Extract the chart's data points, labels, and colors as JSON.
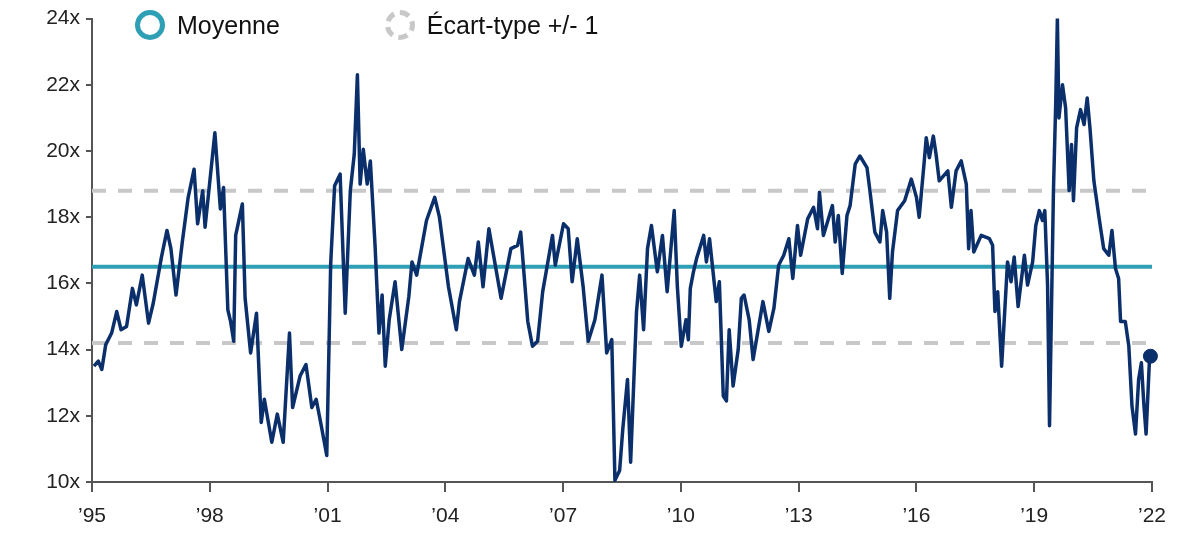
{
  "chart_data": {
    "type": "line",
    "xlim": [
      1995,
      2022
    ],
    "ylim": [
      10,
      24
    ],
    "xticks": [
      {
        "value": 1995,
        "label": "’95"
      },
      {
        "value": 1998,
        "label": "’98"
      },
      {
        "value": 2001,
        "label": "’01"
      },
      {
        "value": 2004,
        "label": "’04"
      },
      {
        "value": 2007,
        "label": "’07"
      },
      {
        "value": 2010,
        "label": "’10"
      },
      {
        "value": 2013,
        "label": "’13"
      },
      {
        "value": 2016,
        "label": "’16"
      },
      {
        "value": 2019,
        "label": "’19"
      },
      {
        "value": 2022,
        "label": "’22"
      }
    ],
    "yticks": [
      {
        "value": 10,
        "label": "10x"
      },
      {
        "value": 12,
        "label": "12x"
      },
      {
        "value": 14,
        "label": "14x"
      },
      {
        "value": 16,
        "label": "16x"
      },
      {
        "value": 18,
        "label": "18x"
      },
      {
        "value": 20,
        "label": "20x"
      },
      {
        "value": 22,
        "label": "22x"
      },
      {
        "value": 24,
        "label": "24x"
      }
    ],
    "legend": "top left",
    "ref_lines": [
      {
        "axis": "y",
        "value": 16.5,
        "label": "Moyenne",
        "color": "#2e9fb5",
        "line_style": "solid"
      },
      {
        "axis": "y",
        "value": 18.8,
        "label": "Écart-type +/- 1",
        "color": "#c8c8c8",
        "line_style": "dashed"
      },
      {
        "axis": "y",
        "value": 14.2,
        "color": "#c8c8c8",
        "line_style": "dashed"
      }
    ],
    "series": [
      {
        "type": "line",
        "color": "#0b2f6b",
        "marker": "none",
        "x": [
          1995.05,
          1995.16,
          1995.25,
          1995.35,
          1995.5,
          1995.63,
          1995.74,
          1995.88,
          1996.03,
          1996.13,
          1996.28,
          1996.44,
          1996.56,
          1996.77,
          1996.91,
          1997.01,
          1997.14,
          1997.3,
          1997.45,
          1997.6,
          1997.69,
          1997.82,
          1997.88,
          1998.13,
          1998.27,
          1998.35,
          1998.46,
          1998.53,
          1998.61,
          1998.66,
          1998.83,
          1998.9,
          1999.04,
          1999.19,
          1999.31,
          1999.39,
          1999.58,
          1999.72,
          1999.87,
          2000.03,
          2000.11,
          2000.3,
          2000.45,
          2000.6,
          2000.71,
          2000.84,
          2000.98,
          2001.08,
          2001.18,
          2001.32,
          2001.45,
          2001.58,
          2001.68,
          2001.76,
          2001.83,
          2001.91,
          2002.01,
          2002.09,
          2002.21,
          2002.31,
          2002.39,
          2002.47,
          2002.57,
          2002.72,
          2002.89,
          2003.07,
          2003.15,
          2003.27,
          2003.52,
          2003.73,
          2003.85,
          2004.08,
          2004.28,
          2004.36,
          2004.58,
          2004.74,
          2004.84,
          2004.96,
          2005.11,
          2005.42,
          2005.67,
          2005.84,
          2005.92,
          2006.1,
          2006.22,
          2006.35,
          2006.48,
          2006.73,
          2006.8,
          2007.01,
          2007.13,
          2007.23,
          2007.36,
          2007.51,
          2007.64,
          2007.81,
          2007.99,
          2008.11,
          2008.24,
          2008.32,
          2008.44,
          2008.52,
          2008.64,
          2008.72,
          2008.87,
          2008.95,
          2009.05,
          2009.15,
          2009.25,
          2009.4,
          2009.53,
          2009.65,
          2009.83,
          2009.91,
          2010.01,
          2010.13,
          2010.19,
          2010.24,
          2010.32,
          2010.4,
          2010.58,
          2010.65,
          2010.73,
          2010.9,
          2010.98,
          2011.08,
          2011.16,
          2011.23,
          2011.33,
          2011.46,
          2011.54,
          2011.61,
          2011.74,
          2011.84,
          2012.09,
          2012.24,
          2012.37,
          2012.49,
          2012.62,
          2012.75,
          2012.85,
          2012.97,
          2013.05,
          2013.23,
          2013.38,
          2013.48,
          2013.53,
          2013.63,
          2013.86,
          2013.93,
          2014.01,
          2014.11,
          2014.23,
          2014.31,
          2014.44,
          2014.56,
          2014.74,
          2014.81,
          2014.94,
          2015.07,
          2015.14,
          2015.24,
          2015.32,
          2015.39,
          2015.52,
          2015.7,
          2015.87,
          2016.0,
          2016.07,
          2016.2,
          2016.25,
          2016.33,
          2016.43,
          2016.5,
          2016.58,
          2016.8,
          2016.89,
          2017.01,
          2017.14,
          2017.27,
          2017.33,
          2017.39,
          2017.46,
          2017.65,
          2017.86,
          2017.94,
          2018.0,
          2018.07,
          2018.17,
          2018.32,
          2018.41,
          2018.49,
          2018.59,
          2018.75,
          2018.83,
          2018.96,
          2019.04,
          2019.13,
          2019.21,
          2019.27,
          2019.34,
          2019.39,
          2019.49,
          2019.55,
          2019.59,
          2019.63,
          2019.72,
          2019.8,
          2019.89,
          2019.95,
          2020.0,
          2020.08,
          2020.18,
          2020.27,
          2020.35,
          2020.42,
          2020.52,
          2020.65,
          2020.77,
          2020.9,
          2020.98,
          2021.07,
          2021.15,
          2021.2,
          2021.32,
          2021.41,
          2021.49,
          2021.58,
          2021.66,
          2021.73,
          2021.79,
          2021.85,
          2021.94
        ],
        "values": [
          13.5,
          13.65,
          13.4,
          14.15,
          14.5,
          15.15,
          14.6,
          14.7,
          15.85,
          15.35,
          16.25,
          14.8,
          15.4,
          16.8,
          17.6,
          17.05,
          15.65,
          17.25,
          18.6,
          19.45,
          17.8,
          18.8,
          17.7,
          20.55,
          18.25,
          18.9,
          15.2,
          14.85,
          14.25,
          17.45,
          18.4,
          15.55,
          13.9,
          15.1,
          11.8,
          12.5,
          11.2,
          12.05,
          11.2,
          14.5,
          12.25,
          13.2,
          13.55,
          12.25,
          12.5,
          11.7,
          10.8,
          16.6,
          18.95,
          19.3,
          15.1,
          18.8,
          19.9,
          22.3,
          19.0,
          20.05,
          19.0,
          19.7,
          17.15,
          14.5,
          15.65,
          13.5,
          14.9,
          16.05,
          14.0,
          15.6,
          16.65,
          16.25,
          17.9,
          18.6,
          18.0,
          15.9,
          14.6,
          15.45,
          16.75,
          16.25,
          17.25,
          15.9,
          17.65,
          15.55,
          17.05,
          17.15,
          17.55,
          14.85,
          14.1,
          14.25,
          15.75,
          17.45,
          16.55,
          17.8,
          17.65,
          16.05,
          17.35,
          15.9,
          14.25,
          14.9,
          16.25,
          13.9,
          14.3,
          10.05,
          10.35,
          11.6,
          13.1,
          10.6,
          15.15,
          16.25,
          14.6,
          17.05,
          17.75,
          16.35,
          17.45,
          15.75,
          18.2,
          15.9,
          14.1,
          14.9,
          14.3,
          15.85,
          16.35,
          16.75,
          17.45,
          16.65,
          17.35,
          15.45,
          16.05,
          12.6,
          12.45,
          14.6,
          12.9,
          14.0,
          15.55,
          15.65,
          14.9,
          13.7,
          15.45,
          14.55,
          15.25,
          16.55,
          16.85,
          17.35,
          16.15,
          17.75,
          16.85,
          17.95,
          18.3,
          17.65,
          18.75,
          17.45,
          18.35,
          17.25,
          18.05,
          16.3,
          18.05,
          18.35,
          19.6,
          19.85,
          19.5,
          18.85,
          17.55,
          17.25,
          18.2,
          17.55,
          15.55,
          16.95,
          18.2,
          18.5,
          19.15,
          18.6,
          18.0,
          19.7,
          20.4,
          19.8,
          20.45,
          19.9,
          19.1,
          19.4,
          18.3,
          19.4,
          19.7,
          19.0,
          17.05,
          18.2,
          16.95,
          17.45,
          17.35,
          17.15,
          15.15,
          15.75,
          13.5,
          16.65,
          16.05,
          16.8,
          15.3,
          16.85,
          15.95,
          16.65,
          17.75,
          18.2,
          17.9,
          18.2,
          15.95,
          11.7,
          18.8,
          21.55,
          24.0,
          21.0,
          22.0,
          21.3,
          18.8,
          20.2,
          18.5,
          20.7,
          21.25,
          20.8,
          21.6,
          20.7,
          19.1,
          18.0,
          17.05,
          16.85,
          17.6,
          16.45,
          16.15,
          14.85,
          14.85,
          14.1,
          12.3,
          11.45,
          13.1,
          13.6,
          12.4,
          11.45,
          13.8
        ]
      },
      {
        "type": "scatter",
        "color": "#0b2f6b",
        "marker": "circle",
        "x": [
          2021.96
        ],
        "values": [
          13.8
        ]
      }
    ]
  }
}
